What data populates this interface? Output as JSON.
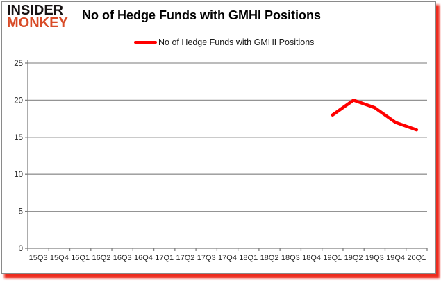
{
  "logo": {
    "line1": "INSIDER",
    "line2": "MONKEY"
  },
  "header": {
    "title": "No of Hedge Funds with GMHI Positions"
  },
  "legend": {
    "label": "No of Hedge Funds with GMHI Positions"
  },
  "colors": {
    "series_red": "#ff0000",
    "logo_red": "#d84b27",
    "gridline_gray": "#949494",
    "axis_gray": "#7f7f7f",
    "tick_label": "#262626",
    "border_shadow_red": "#eb1405"
  },
  "chart_data": {
    "type": "line",
    "title": "No of Hedge Funds with GMHI Positions",
    "categories": [
      "15Q3",
      "15Q4",
      "16Q1",
      "16Q2",
      "16Q3",
      "16Q4",
      "17Q1",
      "17Q2",
      "17Q3",
      "17Q4",
      "18Q1",
      "18Q2",
      "18Q3",
      "18Q4",
      "19Q1",
      "19Q2",
      "19Q3",
      "19Q4",
      "20Q1"
    ],
    "series": [
      {
        "name": "No of Hedge Funds with GMHI Positions",
        "color": "#ff0000",
        "values": [
          null,
          null,
          null,
          null,
          null,
          null,
          null,
          null,
          null,
          null,
          null,
          null,
          null,
          null,
          18,
          20,
          19,
          17,
          16
        ]
      }
    ],
    "ylim": [
      0,
      25
    ],
    "ytick_step": 5,
    "yticks": [
      0,
      5,
      10,
      15,
      20,
      25
    ],
    "grid": true,
    "legend_position": "top",
    "xlabel": "",
    "ylabel": ""
  }
}
